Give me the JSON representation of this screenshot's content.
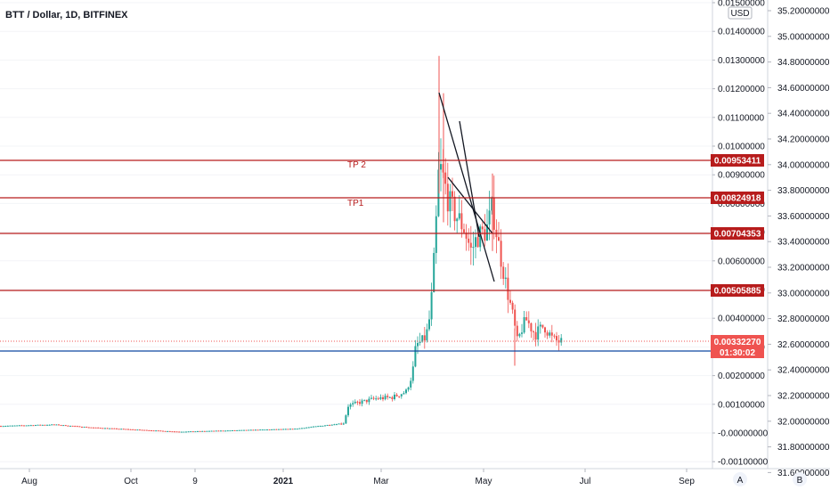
{
  "chart_data": {
    "type": "candlestick",
    "title": "BTT / Dollar, 1D, BITFINEX",
    "currency": "USD",
    "x_ticks": [
      "Aug",
      "Oct",
      "9",
      "2021",
      "Mar",
      "May",
      "Jul",
      "Sep"
    ],
    "y_ticks_left": [
      "0.01500000",
      "0.01400000",
      "0.01300000",
      "0.01200000",
      "0.01100000",
      "0.01000000",
      "0.00900000",
      "0.00800000",
      "0.00700000",
      "0.00600000",
      "0.00500000",
      "0.00400000",
      "0.00300000",
      "0.00200000",
      "0.00100000",
      "-0.00000000",
      "-0.00100000"
    ],
    "y_ticks_right": [
      "35.20000000",
      "35.00000000",
      "34.80000000",
      "34.60000000",
      "34.40000000",
      "34.20000000",
      "34.00000000",
      "33.80000000",
      "33.60000000",
      "33.40000000",
      "33.20000000",
      "33.00000000",
      "32.80000000",
      "32.60000000",
      "32.40000000",
      "32.20000000",
      "32.00000000",
      "31.80000000",
      "31.60000000"
    ],
    "ylim": [
      -0.001,
      0.0155
    ],
    "horizontal_levels": [
      {
        "value": 0.00953411,
        "label": "0.00953411",
        "color": "#b71c1c"
      },
      {
        "value": 0.00824918,
        "label": "0.00824918",
        "color": "#b71c1c"
      },
      {
        "value": 0.00704353,
        "label": "0.00704353",
        "color": "#b71c1c"
      },
      {
        "value": 0.00505885,
        "label": "0.00505885",
        "color": "#b71c1c"
      },
      {
        "value": 0.00298977,
        "label": "0.00298977",
        "color": "#0d47a1"
      }
    ],
    "annotations": [
      {
        "text": "TP 2",
        "level": 0.00953411
      },
      {
        "text": "TP1",
        "level": 0.00824918
      }
    ],
    "last_price": {
      "value": 0.0033227,
      "label": "0.00332270",
      "countdown": "01:30:02",
      "color": "#ef5350"
    },
    "up_color": "#26a69a",
    "down_color": "#ef5350",
    "corner_buttons": [
      "A",
      "B"
    ]
  }
}
